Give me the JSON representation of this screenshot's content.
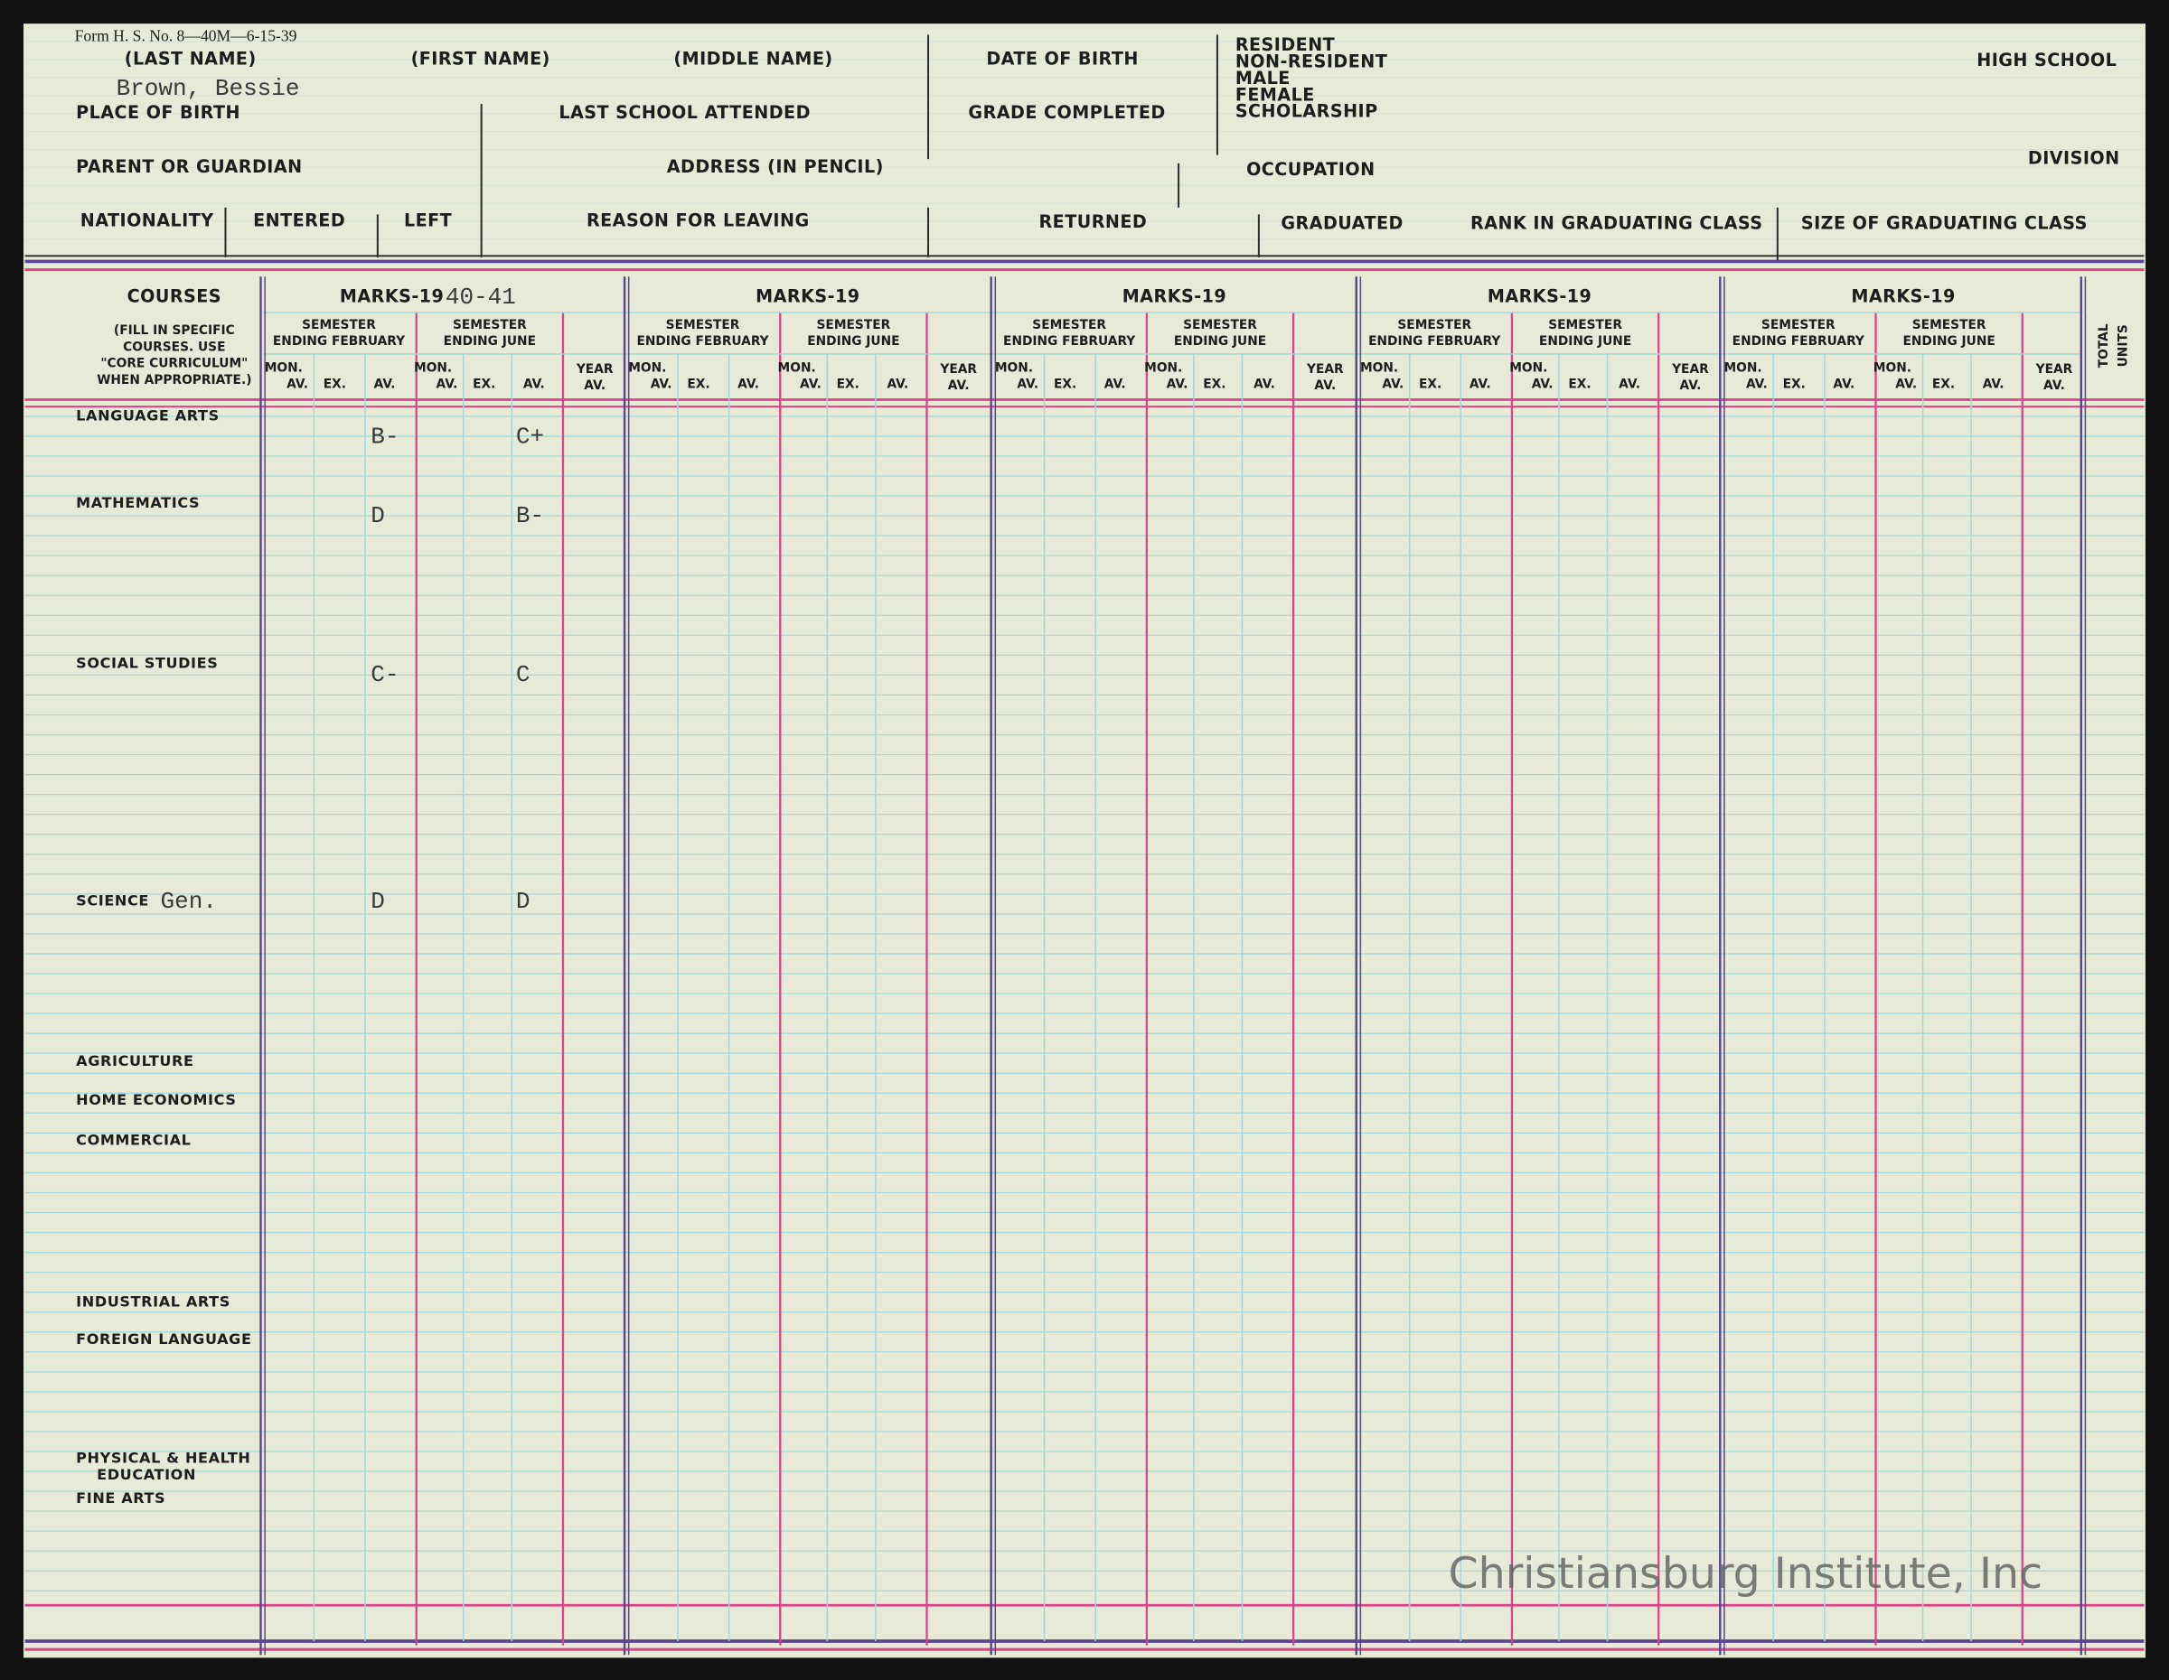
{
  "form_number": "Form H. S. No. 8—40M—6-15-39",
  "header": {
    "last_name": "(LAST NAME)",
    "first_name": "(FIRST NAME)",
    "middle_name": "(MIDDLE NAME)",
    "date_of_birth": "DATE OF BIRTH",
    "high_school": "HIGH SCHOOL",
    "student_name": "Brown, Bessie",
    "place_of_birth": "PLACE OF BIRTH",
    "last_school": "LAST SCHOOL ATTENDED",
    "grade_completed": "GRADE COMPLETED",
    "parent": "PARENT OR GUARDIAN",
    "address": "ADDRESS (IN PENCIL)",
    "occupation": "OCCUPATION",
    "division": "DIVISION",
    "nationality": "NATIONALITY",
    "entered": "ENTERED",
    "left": "LEFT",
    "reason": "REASON FOR LEAVING",
    "returned": "RETURNED",
    "graduated": "GRADUATED",
    "rank": "RANK IN GRADUATING CLASS",
    "size": "SIZE OF GRADUATING CLASS",
    "status_options": [
      "RESIDENT",
      "NON-RESIDENT",
      "MALE",
      "FEMALE",
      "SCHOLARSHIP"
    ]
  },
  "grid": {
    "courses_title": "COURSES",
    "courses_note": [
      "(FILL IN SPECIFIC",
      "COURSES. USE",
      "\"CORE CURRICULUM\"",
      "WHEN APPROPRIATE.)"
    ],
    "years": [
      {
        "label": "MARKS-19",
        "written": "40-41"
      },
      {
        "label": "MARKS-19"
      },
      {
        "label": "MARKS-19"
      },
      {
        "label": "MARKS-19"
      },
      {
        "label": "MARKS-19"
      }
    ],
    "semester_feb": [
      "SEMESTER",
      "ENDING FEBRUARY"
    ],
    "semester_june": [
      "SEMESTER",
      "ENDING JUNE"
    ],
    "mon_av": [
      "MON.",
      "AV."
    ],
    "ex": "EX.",
    "av": "AV.",
    "year_av": [
      "YEAR",
      "AV."
    ],
    "total_units": [
      "TOTAL",
      "UNITS"
    ]
  },
  "courses": [
    {
      "name": "LANGUAGE ARTS",
      "feb_av": "B-",
      "june_av": "C+"
    },
    {
      "name": "MATHEMATICS",
      "feb_av": "D",
      "june_av": "B-"
    },
    {
      "name": "SOCIAL STUDIES",
      "feb_av": "C-",
      "june_av": "C"
    },
    {
      "name": "SCIENCE",
      "written": "Gen.",
      "feb_av": "D",
      "june_av": "D"
    },
    {
      "name": "AGRICULTURE"
    },
    {
      "name": "HOME ECONOMICS"
    },
    {
      "name": "COMMERCIAL"
    },
    {
      "name": "INDUSTRIAL ARTS"
    },
    {
      "name": "FOREIGN LANGUAGE"
    },
    {
      "name": "PHYSICAL & HEALTH",
      "name_line2": "EDUCATION"
    },
    {
      "name": "FINE ARTS"
    }
  ],
  "watermark": "Christiansburg Institute, Inc"
}
